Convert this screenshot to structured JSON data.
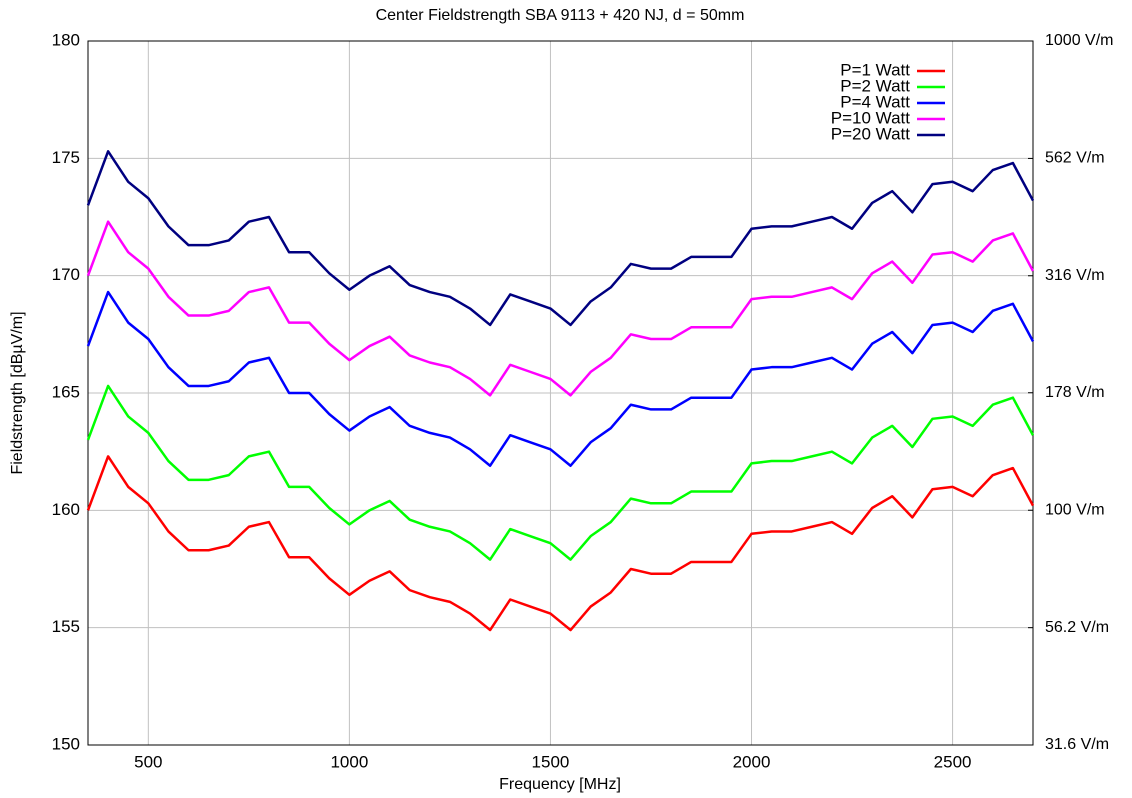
{
  "chart_data": {
    "type": "line",
    "title": "Center Fieldstrength SBA 9113 + 420 NJ, d = 50mm",
    "x_label": "Frequency [MHz]",
    "y_label": "Fieldstrength [dBµV/m]",
    "x": [
      350,
      400,
      450,
      500,
      550,
      600,
      650,
      700,
      750,
      800,
      850,
      900,
      950,
      1000,
      1050,
      1100,
      1150,
      1200,
      1250,
      1300,
      1350,
      1400,
      1450,
      1500,
      1550,
      1600,
      1650,
      1700,
      1750,
      1800,
      1850,
      1900,
      1950,
      2000,
      2050,
      2100,
      2150,
      2200,
      2250,
      2300,
      2350,
      2400,
      2450,
      2500,
      2550,
      2600,
      2650,
      2700
    ],
    "series": [
      {
        "name": "P=1 Watt",
        "color": "#ff0000",
        "values": [
          160.0,
          162.3,
          161.0,
          160.3,
          159.1,
          158.3,
          158.3,
          158.5,
          159.3,
          159.5,
          158.0,
          158.0,
          157.1,
          156.4,
          157.0,
          157.4,
          156.6,
          156.3,
          156.1,
          155.6,
          154.9,
          156.2,
          155.9,
          155.6,
          154.9,
          155.9,
          156.5,
          157.5,
          157.3,
          157.3,
          157.8,
          157.8,
          157.8,
          159.0,
          159.1,
          159.1,
          159.3,
          159.5,
          159.0,
          160.1,
          160.6,
          159.7,
          160.9,
          161.0,
          160.6,
          161.5,
          161.8,
          160.2
        ]
      },
      {
        "name": "P=2 Watt",
        "color": "#00ff00",
        "values": [
          163.0,
          165.3,
          164.0,
          163.3,
          162.1,
          161.3,
          161.3,
          161.5,
          162.3,
          162.5,
          161.0,
          161.0,
          160.1,
          159.4,
          160.0,
          160.4,
          159.6,
          159.3,
          159.1,
          158.6,
          157.9,
          159.2,
          158.9,
          158.6,
          157.9,
          158.9,
          159.5,
          160.5,
          160.3,
          160.3,
          160.8,
          160.8,
          160.8,
          162.0,
          162.1,
          162.1,
          162.3,
          162.5,
          162.0,
          163.1,
          163.6,
          162.7,
          163.9,
          164.0,
          163.6,
          164.5,
          164.8,
          163.2
        ]
      },
      {
        "name": "P=4 Watt",
        "color": "#0000ff",
        "values": [
          167.0,
          169.3,
          168.0,
          167.3,
          166.1,
          165.3,
          165.3,
          165.5,
          166.3,
          166.5,
          165.0,
          165.0,
          164.1,
          163.4,
          164.0,
          164.4,
          163.6,
          163.3,
          163.1,
          162.6,
          161.9,
          163.2,
          162.9,
          162.6,
          161.9,
          162.9,
          163.5,
          164.5,
          164.3,
          164.3,
          164.8,
          164.8,
          164.8,
          166.0,
          166.1,
          166.1,
          166.3,
          166.5,
          166.0,
          167.1,
          167.6,
          166.7,
          167.9,
          168.0,
          167.6,
          168.5,
          168.8,
          167.2
        ]
      },
      {
        "name": "P=10 Watt",
        "color": "#ff00ff",
        "values": [
          170.0,
          172.3,
          171.0,
          170.3,
          169.1,
          168.3,
          168.3,
          168.5,
          169.3,
          169.5,
          168.0,
          168.0,
          167.1,
          166.4,
          167.0,
          167.4,
          166.6,
          166.3,
          166.1,
          165.6,
          164.9,
          166.2,
          165.9,
          165.6,
          164.9,
          165.9,
          166.5,
          167.5,
          167.3,
          167.3,
          167.8,
          167.8,
          167.8,
          169.0,
          169.1,
          169.1,
          169.3,
          169.5,
          169.0,
          170.1,
          170.6,
          169.7,
          170.9,
          171.0,
          170.6,
          171.5,
          171.8,
          170.2
        ]
      },
      {
        "name": "P=20 Watt",
        "color": "#000080",
        "values": [
          173.0,
          175.3,
          174.0,
          173.3,
          172.1,
          171.3,
          171.3,
          171.5,
          172.3,
          172.5,
          171.0,
          171.0,
          170.1,
          169.4,
          170.0,
          170.4,
          169.6,
          169.3,
          169.1,
          168.6,
          167.9,
          169.2,
          168.9,
          168.6,
          167.9,
          168.9,
          169.5,
          170.5,
          170.3,
          170.3,
          170.8,
          170.8,
          170.8,
          172.0,
          172.1,
          172.1,
          172.3,
          172.5,
          172.0,
          173.1,
          173.6,
          172.7,
          173.9,
          174.0,
          173.6,
          174.5,
          174.8,
          173.2
        ]
      }
    ],
    "xlim": [
      350,
      2700
    ],
    "xticks": [
      500,
      1000,
      1500,
      2000,
      2500
    ],
    "ylim": [
      150,
      180
    ],
    "yticks": [
      150,
      155,
      160,
      165,
      170,
      175,
      180
    ],
    "y2lim": [
      31.6,
      1000
    ],
    "y2_log": true,
    "y2ticks": [
      {
        "value": 31.6,
        "label": "31.6 V/m"
      },
      {
        "value": 56.2,
        "label": "56.2 V/m"
      },
      {
        "value": 100,
        "label": "100 V/m"
      },
      {
        "value": 178,
        "label": "178 V/m"
      },
      {
        "value": 316,
        "label": "316 V/m"
      },
      {
        "value": 562,
        "label": "562 V/m"
      },
      {
        "value": 1000,
        "label": "1000 V/m"
      }
    ],
    "grid": true,
    "legend": "upper-right"
  }
}
